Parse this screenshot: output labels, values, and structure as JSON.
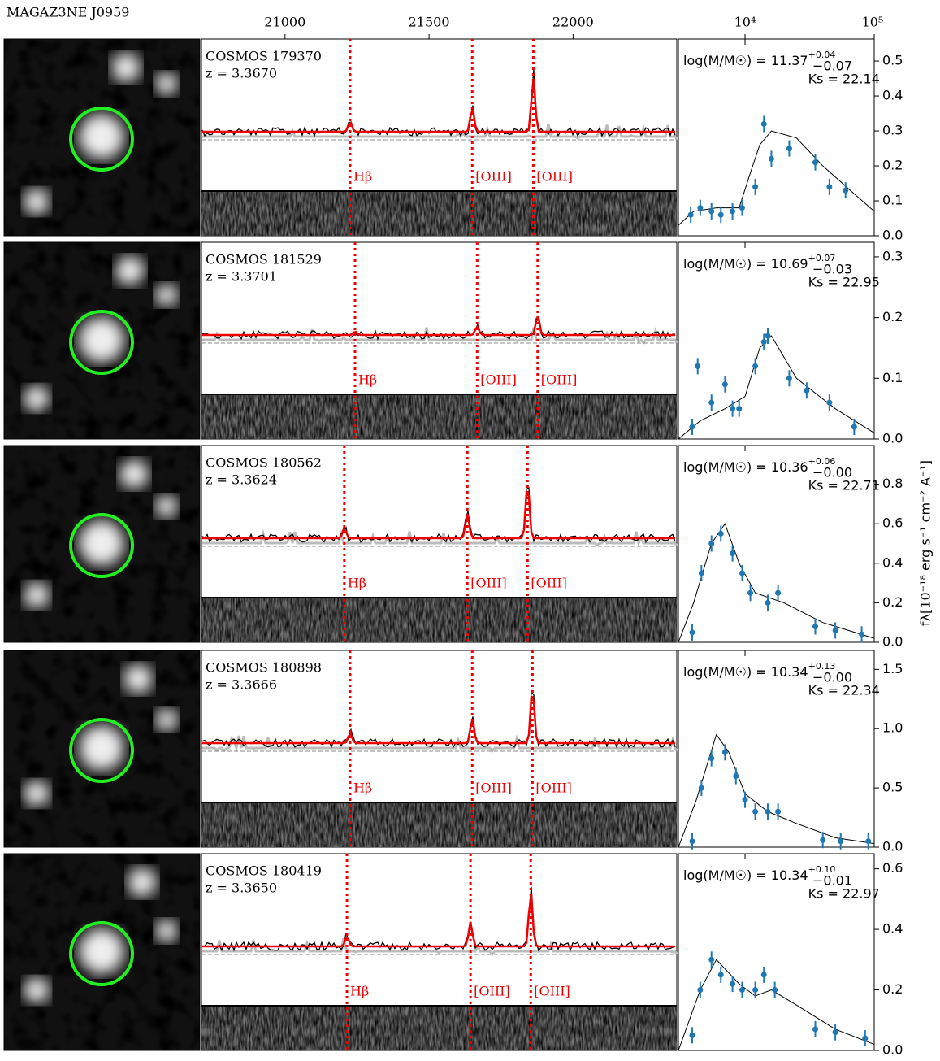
{
  "chart_data": {
    "type": "spectrum-sed",
    "title": "MAGAZ3NE J0959",
    "y_label": "fλ[10⁻¹⁸ erg s⁻¹ cm⁻² A⁻¹]",
    "spectrum_xlim": [
      20710,
      22360
    ],
    "spectrum_xticks": [
      21000,
      21500,
      22000
    ],
    "sed_xlim": [
      3050,
      100000
    ],
    "sed_xticks": [
      {
        "value": 10000,
        "label": "10⁴"
      },
      {
        "value": 100000,
        "label": "10⁵"
      }
    ],
    "log_x_sed": true,
    "rows": [
      {
        "name": "COSMOS 179370",
        "redshift": "z = 3.3670",
        "mass": "log(M/M☉) = 11.37",
        "mass_err_plus": "+0.04",
        "mass_err_minus": "−0.07",
        "ks": "Ks = 22.14",
        "lines": [
          {
            "label": "Hβ",
            "wavelength": 21226
          },
          {
            "label": "[OIII]",
            "wavelength": 21650
          },
          {
            "label": "[OIII]",
            "wavelength": 21862
          }
        ],
        "ylim": [
          0,
          0.563
        ],
        "yticks": [
          {
            "value": 0,
            "label": "0.0"
          },
          0.1,
          0.2,
          0.3,
          0.4,
          0.5
        ],
        "photometry": {
          "x": [
            3800,
            4500,
            5500,
            6500,
            8000,
            9500,
            12000,
            14000,
            16000,
            22000,
            35000,
            45000,
            60000
          ],
          "y": [
            0.06,
            0.08,
            0.07,
            0.06,
            0.07,
            0.08,
            0.14,
            0.32,
            0.22,
            0.25,
            0.21,
            0.14,
            0.13
          ]
        },
        "model": {
          "x": [
            3050,
            4000,
            6000,
            9000,
            11000,
            13000,
            16000,
            25000,
            40000,
            70000,
            100000
          ],
          "y": [
            0.03,
            0.07,
            0.08,
            0.08,
            0.18,
            0.26,
            0.3,
            0.28,
            0.2,
            0.12,
            0.07
          ]
        }
      },
      {
        "name": "COSMOS 181529",
        "redshift": "z = 3.3701",
        "mass": "log(M/M☉) = 10.69",
        "mass_err_plus": "+0.07",
        "mass_err_minus": "−0.03",
        "ks": "Ks = 22.95",
        "lines": [
          {
            "label": "Hβ",
            "wavelength": 21243
          },
          {
            "label": "[OIII]",
            "wavelength": 21667
          },
          {
            "label": "[OIII]",
            "wavelength": 21877
          }
        ],
        "ylim": [
          0,
          0.324
        ],
        "yticks": [
          {
            "value": 0,
            "label": "0.0"
          },
          0.1,
          0.2,
          0.3
        ],
        "photometry": {
          "x": [
            3900,
            4300,
            5500,
            7000,
            8000,
            9000,
            12000,
            14000,
            15000,
            22000,
            30000,
            45000,
            70000
          ],
          "y": [
            0.02,
            0.12,
            0.06,
            0.09,
            0.05,
            0.05,
            0.12,
            0.16,
            0.17,
            0.1,
            0.08,
            0.06,
            0.02
          ]
        },
        "model": {
          "x": [
            3050,
            4500,
            7000,
            10000,
            13000,
            16000,
            25000,
            50000,
            100000
          ],
          "y": [
            0.0,
            0.03,
            0.05,
            0.07,
            0.15,
            0.17,
            0.1,
            0.05,
            0.01
          ]
        }
      },
      {
        "name": "COSMOS 180562",
        "redshift": "z = 3.3624",
        "mass": "log(M/M☉) = 10.36",
        "mass_err_plus": "+0.06",
        "mass_err_minus": "−0.00",
        "ks": "Ks = 22.71",
        "lines": [
          {
            "label": "Hβ",
            "wavelength": 21206
          },
          {
            "label": "[OIII]",
            "wavelength": 21633
          },
          {
            "label": "[OIII]",
            "wavelength": 21842
          }
        ],
        "ylim": [
          0,
          0.996
        ],
        "yticks": [
          {
            "value": 0,
            "label": "0.0"
          },
          0.2,
          0.4,
          0.6,
          0.8
        ],
        "photometry": {
          "x": [
            3900,
            4600,
            5500,
            6500,
            8000,
            9500,
            11000,
            15000,
            18000,
            35000,
            50000,
            80000
          ],
          "y": [
            0.05,
            0.35,
            0.5,
            0.55,
            0.45,
            0.35,
            0.25,
            0.2,
            0.25,
            0.08,
            0.06,
            0.04
          ]
        },
        "model": {
          "x": [
            3050,
            4000,
            5500,
            7000,
            9000,
            12000,
            20000,
            40000,
            100000
          ],
          "y": [
            0.0,
            0.2,
            0.5,
            0.6,
            0.4,
            0.25,
            0.2,
            0.1,
            0.02
          ]
        }
      },
      {
        "name": "COSMOS 180898",
        "redshift": "z = 3.3666",
        "mass": "log(M/M☉) = 10.34",
        "mass_err_plus": "+0.13",
        "mass_err_minus": "−0.00",
        "ks": "Ks = 22.34",
        "lines": [
          {
            "label": "Hβ",
            "wavelength": 21226
          },
          {
            "label": "[OIII]",
            "wavelength": 21650
          },
          {
            "label": "[OIII]",
            "wavelength": 21859
          }
        ],
        "ylim": [
          0,
          1.66
        ],
        "yticks": [
          {
            "value": 0,
            "label": "0.0"
          },
          0.5,
          {
            "value": 1,
            "label": "1.0"
          },
          1.5
        ],
        "photometry": {
          "x": [
            3900,
            4600,
            5500,
            7000,
            8500,
            10000,
            12000,
            15000,
            18000,
            40000,
            55000,
            90000
          ],
          "y": [
            0.05,
            0.5,
            0.75,
            0.8,
            0.6,
            0.4,
            0.3,
            0.3,
            0.3,
            0.06,
            0.05,
            0.05
          ]
        },
        "model": {
          "x": [
            3050,
            4200,
            6000,
            7500,
            10000,
            15000,
            25000,
            50000,
            100000
          ],
          "y": [
            0.0,
            0.4,
            0.95,
            0.8,
            0.45,
            0.3,
            0.2,
            0.08,
            0.03
          ]
        }
      },
      {
        "name": "COSMOS 180419",
        "redshift": "z = 3.3650",
        "mass": "log(M/M☉) = 10.34",
        "mass_err_plus": "+0.10",
        "mass_err_minus": "−0.01",
        "ks": "Ks = 22.97",
        "lines": [
          {
            "label": "Hβ",
            "wavelength": 21215
          },
          {
            "label": "[OIII]",
            "wavelength": 21644
          },
          {
            "label": "[OIII]",
            "wavelength": 21853
          }
        ],
        "ylim": [
          0,
          0.65
        ],
        "yticks": [
          {
            "value": 0,
            "label": "0.0"
          },
          0.2,
          0.4,
          0.6
        ],
        "photometry": {
          "x": [
            3900,
            4500,
            5500,
            6500,
            8000,
            9500,
            12000,
            14000,
            17000,
            35000,
            50000,
            85000
          ],
          "y": [
            0.05,
            0.2,
            0.3,
            0.25,
            0.22,
            0.2,
            0.2,
            0.25,
            0.2,
            0.07,
            0.06,
            0.04
          ]
        },
        "model": {
          "x": [
            3050,
            4500,
            6000,
            9000,
            12000,
            16000,
            25000,
            50000,
            100000
          ],
          "y": [
            0.0,
            0.2,
            0.3,
            0.22,
            0.18,
            0.2,
            0.15,
            0.07,
            0.02
          ]
        }
      }
    ]
  }
}
